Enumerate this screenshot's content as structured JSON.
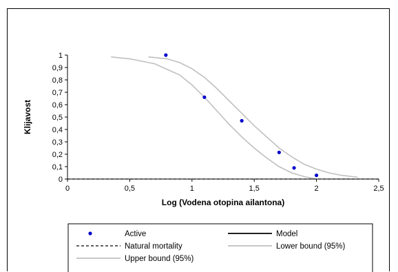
{
  "chart_data": {
    "type": "scatter",
    "title": "",
    "xlabel": "Log (Vodena otopina ailantona)",
    "ylabel": "Klijavost",
    "xlim": [
      0,
      2.5
    ],
    "ylim": [
      0,
      1
    ],
    "x_ticks": [
      "0",
      "0,5",
      "1",
      "1,5",
      "2",
      "2,5"
    ],
    "y_ticks": [
      "0",
      "0,1",
      "0,2",
      "0,3",
      "0,4",
      "0,5",
      "0,6",
      "0,7",
      "0,8",
      "0,9",
      "1"
    ],
    "grid": false,
    "legend_position": "bottom",
    "series": [
      {
        "name": "Active",
        "kind": "points",
        "color": "#0000cc",
        "x": [
          0.79,
          1.1,
          1.4,
          1.7,
          1.82,
          2.0
        ],
        "y": [
          1.0,
          0.66,
          0.47,
          0.215,
          0.09,
          0.03
        ]
      },
      {
        "name": "Model",
        "kind": "line",
        "color": "#000000",
        "x": [],
        "y": []
      },
      {
        "name": "Natural mortality",
        "kind": "dashed-line",
        "color": "#000000",
        "x": [
          0,
          2.5
        ],
        "y": [
          0,
          0
        ]
      },
      {
        "name": "Lower bound (95%)",
        "kind": "line",
        "color": "#bfbfbf",
        "x": [
          0.35,
          0.5,
          0.7,
          0.9,
          1.0,
          1.1,
          1.2,
          1.3,
          1.4,
          1.5,
          1.6,
          1.7,
          1.8,
          1.9,
          2.0
        ],
        "y": [
          0.985,
          0.97,
          0.93,
          0.84,
          0.76,
          0.66,
          0.55,
          0.44,
          0.34,
          0.25,
          0.17,
          0.1,
          0.05,
          0.02,
          0.0
        ]
      },
      {
        "name": "Upper bound (95%)",
        "kind": "line",
        "color": "#bfbfbf",
        "x": [
          0.65,
          0.8,
          0.9,
          1.0,
          1.1,
          1.2,
          1.3,
          1.4,
          1.5,
          1.6,
          1.7,
          1.8,
          1.9,
          2.0,
          2.1,
          2.2,
          2.33
        ],
        "y": [
          0.985,
          0.97,
          0.94,
          0.89,
          0.82,
          0.73,
          0.63,
          0.53,
          0.43,
          0.34,
          0.25,
          0.18,
          0.12,
          0.08,
          0.05,
          0.03,
          0.015
        ]
      }
    ],
    "legend": [
      {
        "label": "Active",
        "marker": "point",
        "color": "#0000cc"
      },
      {
        "label": "Model",
        "marker": "solid",
        "color": "#000000"
      },
      {
        "label": "Natural mortality",
        "marker": "dashed",
        "color": "#000000"
      },
      {
        "label": "Lower bound (95%)",
        "marker": "solid",
        "color": "#bfbfbf"
      },
      {
        "label": "Upper bound (95%)",
        "marker": "solid",
        "color": "#bfbfbf"
      }
    ]
  }
}
